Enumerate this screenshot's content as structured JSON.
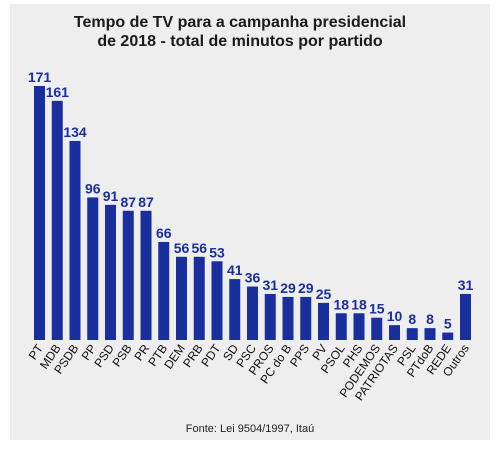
{
  "chart_data": {
    "type": "bar",
    "title_lines": [
      "Tempo de TV para a campanha presidencial",
      "de 2018 - total de minutos por partido"
    ],
    "categories": [
      "PT",
      "MDB",
      "PSDB",
      "PP",
      "PSD",
      "PSB",
      "PR",
      "PTB",
      "DEM",
      "PRB",
      "PDT",
      "SD",
      "PSC",
      "PROS",
      "PC do B",
      "PPS",
      "PV",
      "PSOL",
      "PHS",
      "PODEMOS",
      "PATRIOTAS",
      "PSL",
      "PTdoB",
      "REDE",
      "Outros"
    ],
    "values": [
      171,
      161,
      134,
      96,
      91,
      87,
      87,
      66,
      56,
      56,
      53,
      41,
      36,
      31,
      29,
      29,
      25,
      18,
      18,
      15,
      10,
      8,
      8,
      5,
      31
    ],
    "value_labels": [
      "171",
      "161",
      "134",
      "96",
      "91",
      "87",
      "87",
      "66",
      "56",
      "56",
      "53",
      "41",
      "36",
      "31",
      "29",
      "29",
      "25",
      "18",
      "18",
      "15",
      "10",
      "8",
      "8",
      "5",
      "31"
    ],
    "ylim": [
      0,
      171
    ],
    "bar_color": "#1a2f9e",
    "label_color": "#1a2f9e",
    "grid": false,
    "legend": "none",
    "source": "Fonte: Lei 9504/1997, Itaú"
  }
}
